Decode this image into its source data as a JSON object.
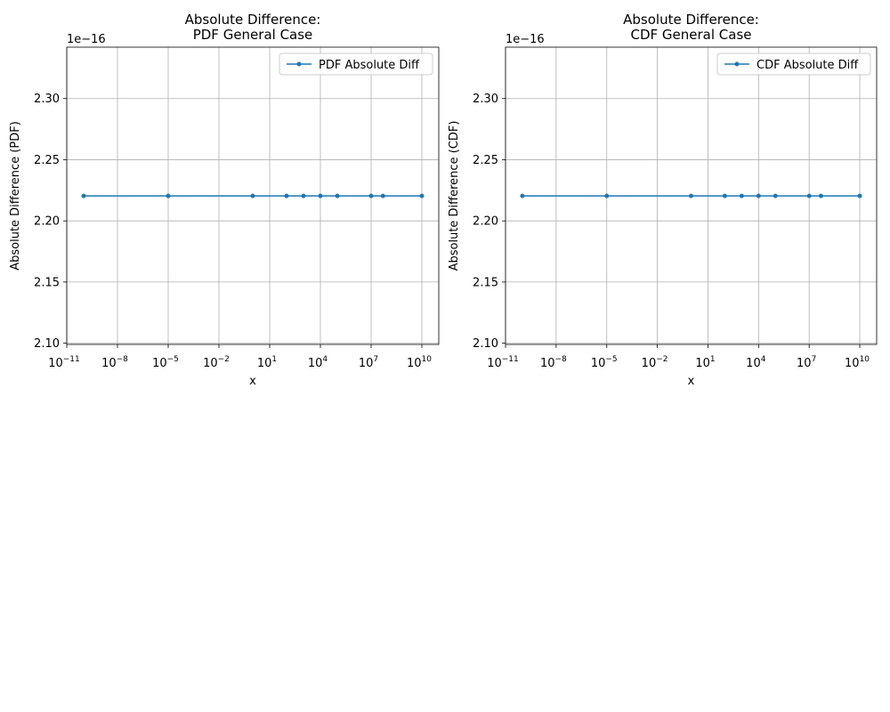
{
  "chart_data": [
    {
      "type": "line",
      "title": [
        "Absolute Difference:",
        "PDF General Case"
      ],
      "xlabel": "x",
      "ylabel": "Absolute Difference (PDF)",
      "x_scale": "log",
      "xlim": [
        1e-11,
        100000000000.0
      ],
      "ylim": [
        2.099,
        2.342
      ],
      "y_offset_label": "1e−16",
      "x_ticks": [
        {
          "value": 1e-11,
          "base": "10",
          "exp": "−11"
        },
        {
          "value": 1e-08,
          "base": "10",
          "exp": "−8"
        },
        {
          "value": 1e-05,
          "base": "10",
          "exp": "−5"
        },
        {
          "value": 0.01,
          "base": "10",
          "exp": "−2"
        },
        {
          "value": 10.0,
          "base": "10",
          "exp": "1"
        },
        {
          "value": 10000.0,
          "base": "10",
          "exp": "4"
        },
        {
          "value": 10000000.0,
          "base": "10",
          "exp": "7"
        },
        {
          "value": 10000000000.0,
          "base": "10",
          "exp": "10"
        }
      ],
      "y_ticks": [
        {
          "value": 2.1,
          "label": "2.10"
        },
        {
          "value": 2.15,
          "label": "2.15"
        },
        {
          "value": 2.2,
          "label": "2.20"
        },
        {
          "value": 2.25,
          "label": "2.25"
        },
        {
          "value": 2.3,
          "label": "2.30"
        }
      ],
      "grid": true,
      "legend_position": "top-right",
      "series": [
        {
          "name": "PDF Absolute Diff",
          "color": "#1f77b4",
          "marker": "dot",
          "x": [
            1e-10,
            1e-05,
            1,
            100,
            1000,
            10000,
            100000,
            10000000.0,
            50000000.0,
            10000000000.0
          ],
          "y": [
            2.2204,
            2.2204,
            2.2204,
            2.2204,
            2.2204,
            2.2204,
            2.2204,
            2.2204,
            2.2204,
            2.2204
          ]
        }
      ]
    },
    {
      "type": "line",
      "title": [
        "Absolute Difference:",
        "CDF General Case"
      ],
      "xlabel": "x",
      "ylabel": "Absolute Difference (CDF)",
      "x_scale": "log",
      "xlim": [
        1e-11,
        100000000000.0
      ],
      "ylim": [
        2.099,
        2.342
      ],
      "y_offset_label": "1e−16",
      "x_ticks": [
        {
          "value": 1e-11,
          "base": "10",
          "exp": "−11"
        },
        {
          "value": 1e-08,
          "base": "10",
          "exp": "−8"
        },
        {
          "value": 1e-05,
          "base": "10",
          "exp": "−5"
        },
        {
          "value": 0.01,
          "base": "10",
          "exp": "−2"
        },
        {
          "value": 10.0,
          "base": "10",
          "exp": "1"
        },
        {
          "value": 10000.0,
          "base": "10",
          "exp": "4"
        },
        {
          "value": 10000000.0,
          "base": "10",
          "exp": "7"
        },
        {
          "value": 10000000000.0,
          "base": "10",
          "exp": "10"
        }
      ],
      "y_ticks": [
        {
          "value": 2.1,
          "label": "2.10"
        },
        {
          "value": 2.15,
          "label": "2.15"
        },
        {
          "value": 2.2,
          "label": "2.20"
        },
        {
          "value": 2.25,
          "label": "2.25"
        },
        {
          "value": 2.3,
          "label": "2.30"
        }
      ],
      "grid": true,
      "legend_position": "top-right",
      "series": [
        {
          "name": "CDF Absolute Diff",
          "color": "#1f77b4",
          "marker": "dot",
          "x": [
            1e-10,
            1e-05,
            1,
            100,
            1000,
            10000,
            100000,
            10000000.0,
            50000000.0,
            10000000000.0
          ],
          "y": [
            2.2204,
            2.2204,
            2.2204,
            2.2204,
            2.2204,
            2.2204,
            2.2204,
            2.2204,
            2.2204,
            2.2204
          ]
        }
      ]
    }
  ]
}
